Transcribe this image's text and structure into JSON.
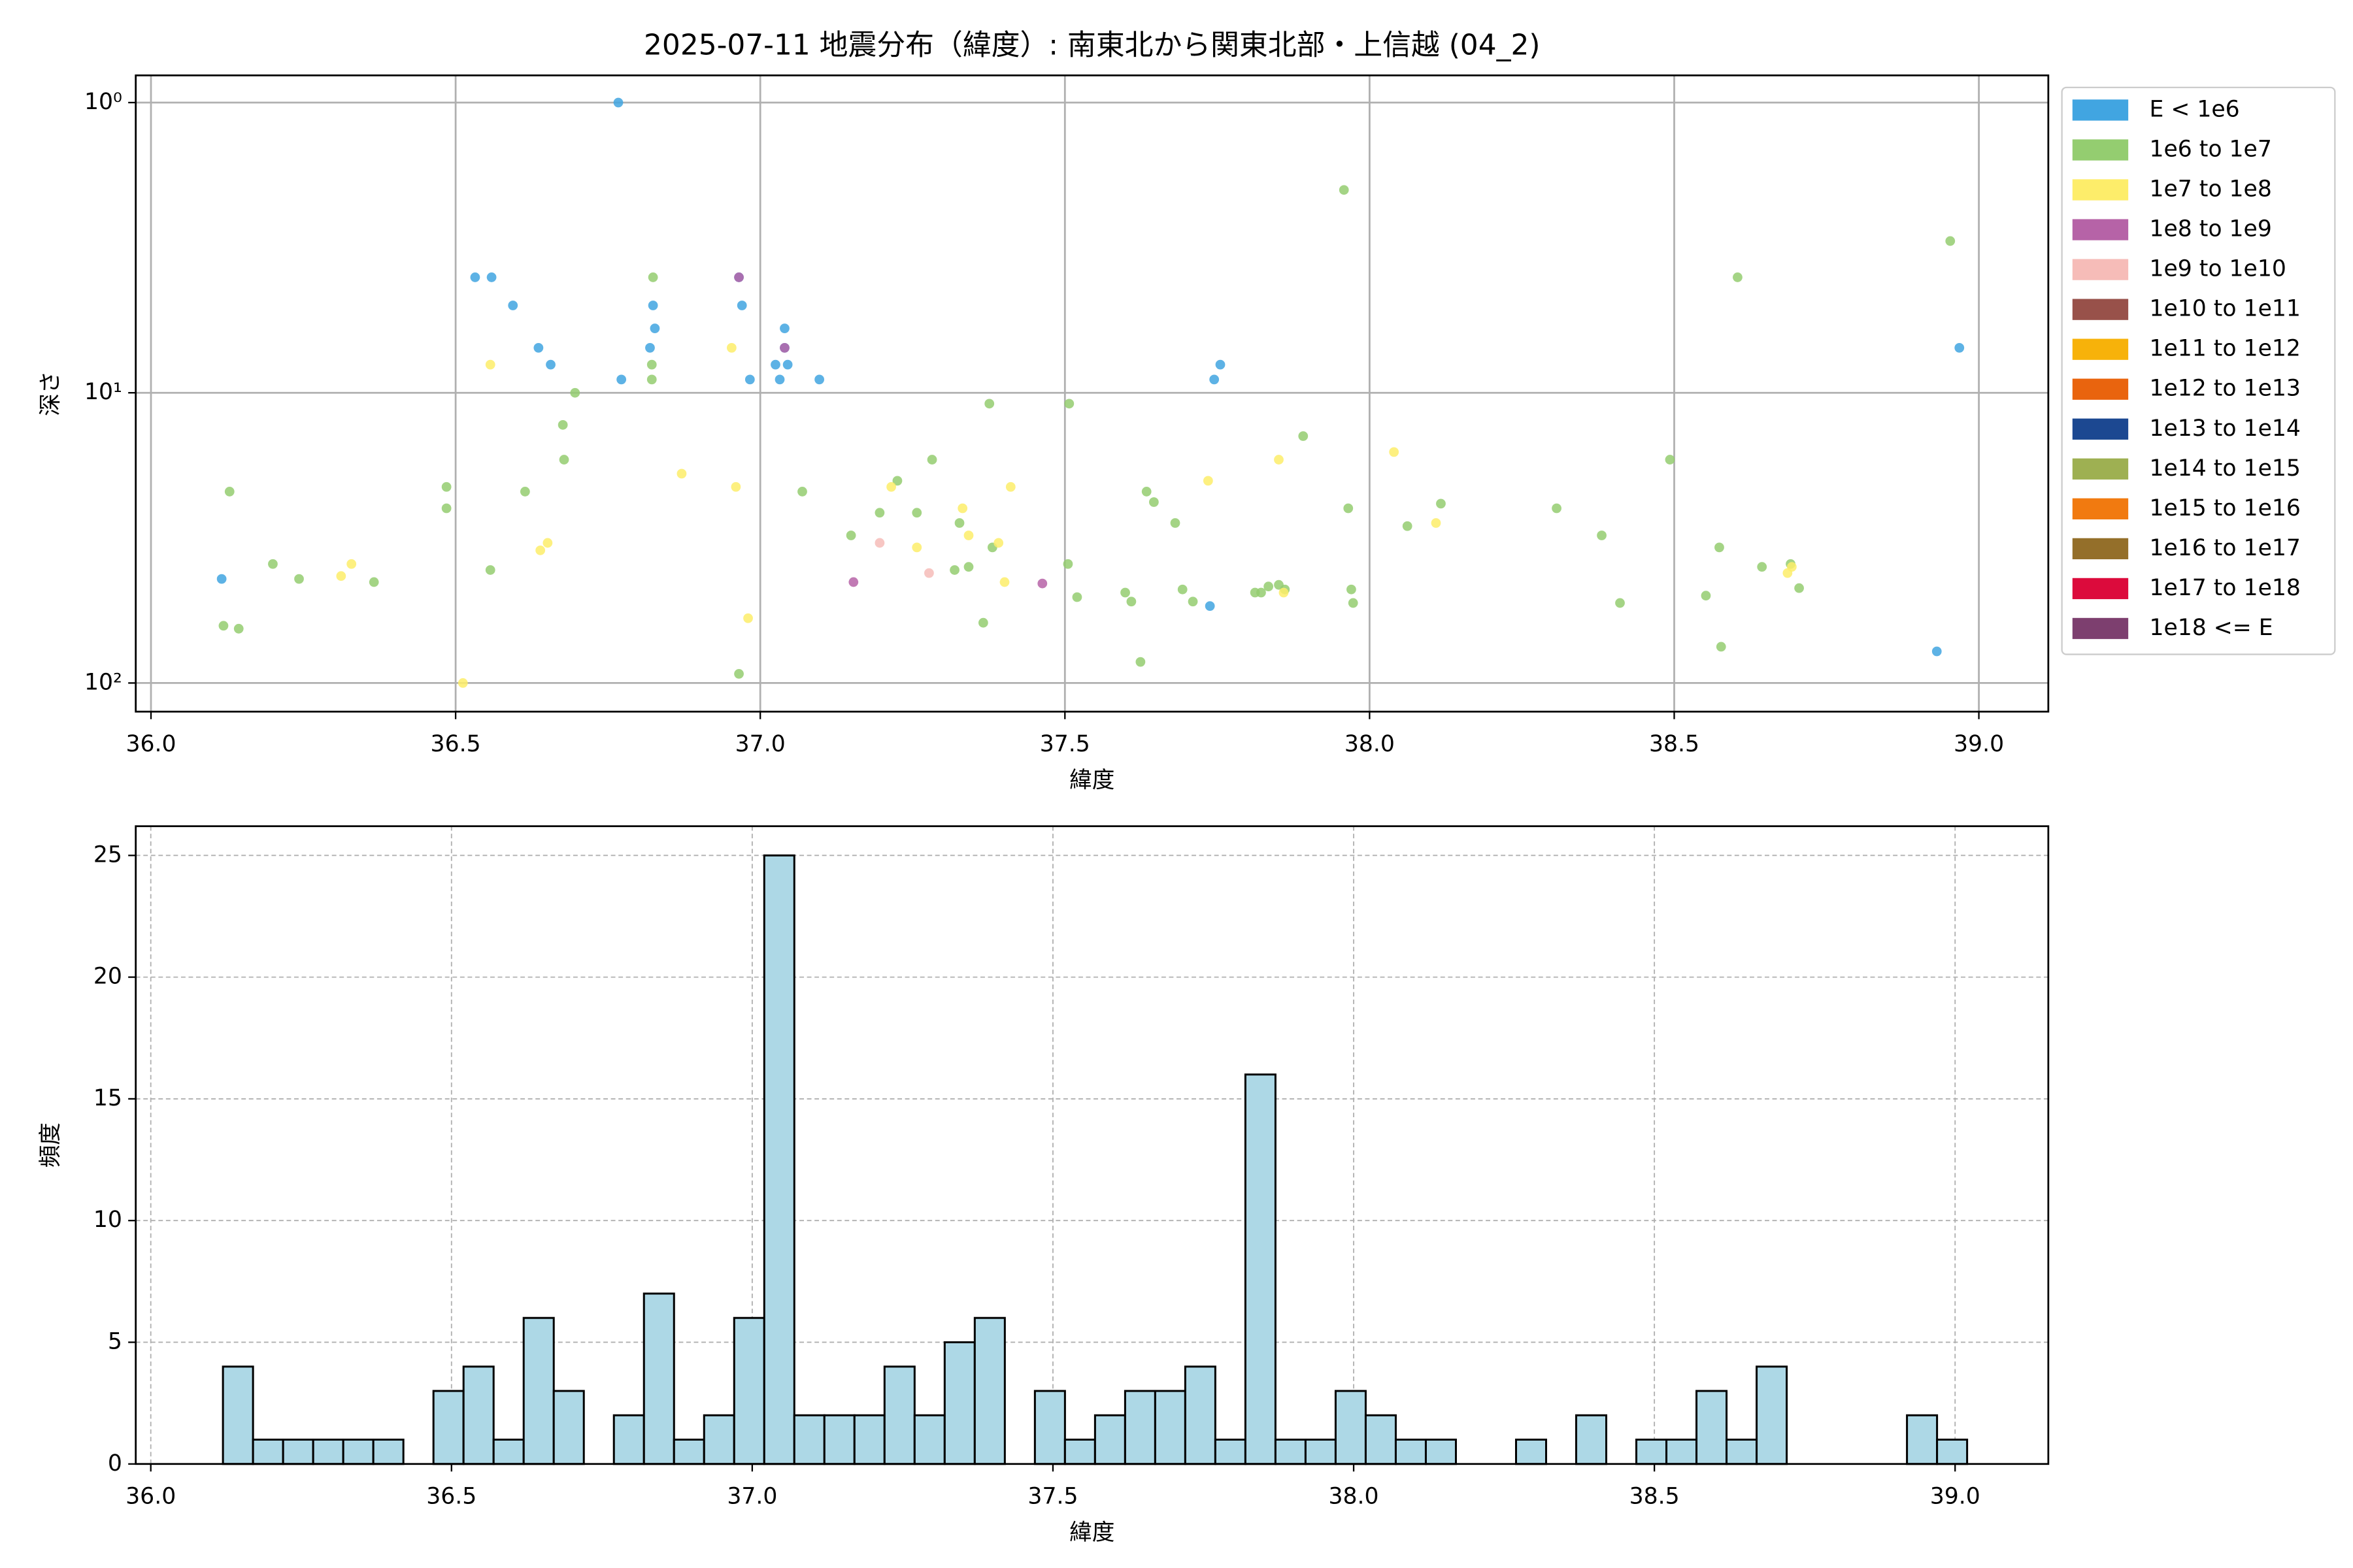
{
  "chart_data": [
    {
      "type": "scatter",
      "title": "2025-07-11 地震分布（緯度）: 南東北から関東北部・上信越 (04_2)",
      "xlabel": "緯度",
      "ylabel": "深さ",
      "log_y": true,
      "grid": true,
      "legend": "outside-right",
      "xlim": [
        35.975,
        39.114
      ],
      "ylim": [
        125.5,
        0.806
      ],
      "xticks": [
        {
          "value": 36,
          "label": "36.0"
        },
        {
          "value": 36.5,
          "label": "36.5"
        },
        {
          "value": 37,
          "label": "37.0"
        },
        {
          "value": 37.5,
          "label": "37.5"
        },
        {
          "value": 38,
          "label": "38.0"
        },
        {
          "value": 38.5,
          "label": "38.5"
        },
        {
          "value": 39,
          "label": "39.0"
        }
      ],
      "yticks": [
        {
          "value": 1,
          "label": "10⁰"
        },
        {
          "value": 10,
          "label": "10¹"
        },
        {
          "value": 100,
          "label": "10²"
        }
      ],
      "series": [
        {
          "name": "E < 1e6",
          "color": "#41a5e1",
          "x": [
            36.116,
            36.532,
            36.559,
            36.594,
            36.636,
            36.656,
            36.767,
            36.772,
            36.819,
            36.824,
            36.827,
            36.965,
            36.97,
            36.983,
            37.025,
            37.032,
            37.04,
            37.04,
            37.045,
            37.097,
            37.745,
            37.755,
            37.738,
            38.968,
            38.931
          ],
          "values": [
            43.8,
            4.0,
            4.0,
            5.0,
            7.0,
            8.0,
            1.0,
            9.0,
            7.0,
            5.0,
            6.0,
            4.0,
            5.0,
            9.0,
            8.0,
            9.0,
            6.0,
            7.0,
            8.0,
            9.0,
            9.0,
            8.0,
            54.3,
            7.0,
            77.8
          ]
        },
        {
          "name": "1e6 to 1e7",
          "color": "#94cd70",
          "x": [
            36.129,
            36.2,
            36.119,
            36.144,
            36.243,
            36.366,
            36.485,
            36.485,
            36.557,
            36.614,
            36.676,
            36.678,
            36.696,
            36.824,
            36.822,
            36.822,
            36.965,
            37.069,
            37.149,
            37.196,
            37.225,
            37.257,
            37.282,
            37.327,
            37.319,
            37.342,
            37.366,
            37.376,
            37.381,
            37.507,
            37.505,
            37.52,
            37.599,
            37.609,
            37.624,
            37.634,
            37.646,
            37.681,
            37.693,
            37.71,
            37.812,
            37.822,
            37.834,
            37.851,
            37.861,
            37.891,
            37.958,
            37.965,
            37.97,
            37.973,
            38.062,
            38.117,
            38.307,
            38.381,
            38.411,
            38.493,
            38.552,
            38.574,
            38.577,
            38.604,
            38.644,
            38.691,
            38.705,
            38.953
          ],
          "values": [
            21.9,
            38.9,
            63.5,
            65.0,
            43.8,
            44.9,
            21.1,
            25.0,
            40.8,
            21.9,
            12.9,
            17.0,
            10.0,
            4.0,
            8.0,
            9.0,
            93.0,
            21.9,
            31.0,
            25.9,
            20.1,
            25.9,
            17.0,
            28.1,
            40.8,
            39.8,
            62.0,
            10.9,
            34.1,
            10.9,
            38.9,
            50.6,
            48.8,
            52.4,
            84.6,
            21.9,
            23.8,
            28.1,
            47.6,
            52.4,
            48.8,
            48.8,
            46.5,
            45.9,
            47.6,
            14.1,
            2.0,
            25.0,
            47.6,
            53.0,
            28.8,
            24.1,
            25.0,
            31.0,
            53.0,
            17.0,
            50.0,
            34.1,
            75.0,
            4.0,
            39.8,
            38.9,
            47.1,
            3.0
          ]
        },
        {
          "name": "1e7 to 1e8",
          "color": "#fded6a",
          "x": [
            36.312,
            36.329,
            36.512,
            36.557,
            36.639,
            36.651,
            36.871,
            36.953,
            36.96,
            36.98,
            37.215,
            37.257,
            37.332,
            37.342,
            37.391,
            37.401,
            37.411,
            37.735,
            37.851,
            37.859,
            38.04,
            38.109,
            38.686,
            38.693
          ],
          "values": [
            42.8,
            38.9,
            100,
            8.0,
            34.9,
            32.9,
            19.0,
            7.0,
            21.1,
            59.8,
            21.1,
            34.1,
            25.0,
            31.0,
            32.9,
            44.9,
            21.1,
            20.1,
            17.0,
            48.8,
            16.0,
            28.1,
            41.8,
            39.8
          ]
        },
        {
          "name": "1e8 to 1e9",
          "color": "#b663a7",
          "x": [
            36.965,
            37.04,
            37.153,
            37.463
          ],
          "values": [
            4.0,
            7.0,
            44.9,
            45.4
          ]
        },
        {
          "name": "1e9 to 1e10",
          "color": "#f6bcb8",
          "x": [
            37.196,
            37.277
          ],
          "values": [
            32.9,
            41.8
          ]
        },
        {
          "name": "1e10 to 1e11",
          "color": "#98514a",
          "x": [],
          "values": []
        },
        {
          "name": "1e11 to 1e12",
          "color": "#f7b20a",
          "x": [],
          "values": []
        },
        {
          "name": "1e12 to 1e13",
          "color": "#e9640e",
          "x": [],
          "values": []
        },
        {
          "name": "1e13 to 1e14",
          "color": "#1c4891",
          "x": [],
          "values": []
        },
        {
          "name": "1e14 to 1e15",
          "color": "#9eb052",
          "x": [],
          "values": []
        },
        {
          "name": "1e15 to 1e16",
          "color": "#f17a10",
          "x": [],
          "values": []
        },
        {
          "name": "1e16 to 1e17",
          "color": "#946f2a",
          "x": [],
          "values": []
        },
        {
          "name": "1e17 to 1e18",
          "color": "#dc0b3c",
          "x": [],
          "values": []
        },
        {
          "name": "1e18 <= E",
          "color": "#7d3f6f",
          "x": [],
          "values": []
        }
      ]
    },
    {
      "type": "histogram",
      "xlabel": "緯度",
      "ylabel": "頻度",
      "color": "#add8e6",
      "edgecolor": "#000000",
      "grid": true,
      "xlim": [
        35.975,
        39.155
      ],
      "ylim": [
        0,
        26.2
      ],
      "xticks": [
        {
          "value": 36,
          "label": "36.0"
        },
        {
          "value": 36.5,
          "label": "36.5"
        },
        {
          "value": 37,
          "label": "37.0"
        },
        {
          "value": 37.5,
          "label": "37.5"
        },
        {
          "value": 38,
          "label": "38.0"
        },
        {
          "value": 38.5,
          "label": "38.5"
        },
        {
          "value": 39,
          "label": "39.0"
        }
      ],
      "yticks": [
        0,
        5,
        10,
        15,
        20,
        25
      ],
      "bins": [
        36.12,
        36.17,
        36.22,
        36.27,
        36.32,
        36.37,
        36.42,
        36.47,
        36.52,
        36.57,
        36.62,
        36.67,
        36.72,
        36.77,
        36.82,
        36.87,
        36.92,
        36.97,
        37.02,
        37.07,
        37.12,
        37.17,
        37.22,
        37.27,
        37.32,
        37.37,
        37.42,
        37.47,
        37.52,
        37.57,
        37.62,
        37.67,
        37.72,
        37.77,
        37.82,
        37.87,
        37.92,
        37.97,
        38.02,
        38.07,
        38.12,
        38.17,
        38.22,
        38.27,
        38.32,
        38.37,
        38.42,
        38.47,
        38.52,
        38.57,
        38.62,
        38.67,
        38.72,
        38.77,
        38.82,
        38.87,
        38.92,
        38.97,
        39.02
      ],
      "values": [
        4,
        1,
        1,
        1,
        1,
        1,
        0,
        3,
        4,
        1,
        6,
        3,
        0,
        2,
        7,
        1,
        2,
        6,
        25,
        2,
        2,
        2,
        4,
        2,
        5,
        6,
        0,
        3,
        1,
        2,
        3,
        3,
        4,
        1,
        16,
        1,
        1,
        3,
        2,
        1,
        1,
        0,
        0,
        1,
        0,
        2,
        0,
        1,
        1,
        3,
        1,
        4,
        0,
        0,
        0,
        0,
        2,
        1
      ]
    }
  ]
}
